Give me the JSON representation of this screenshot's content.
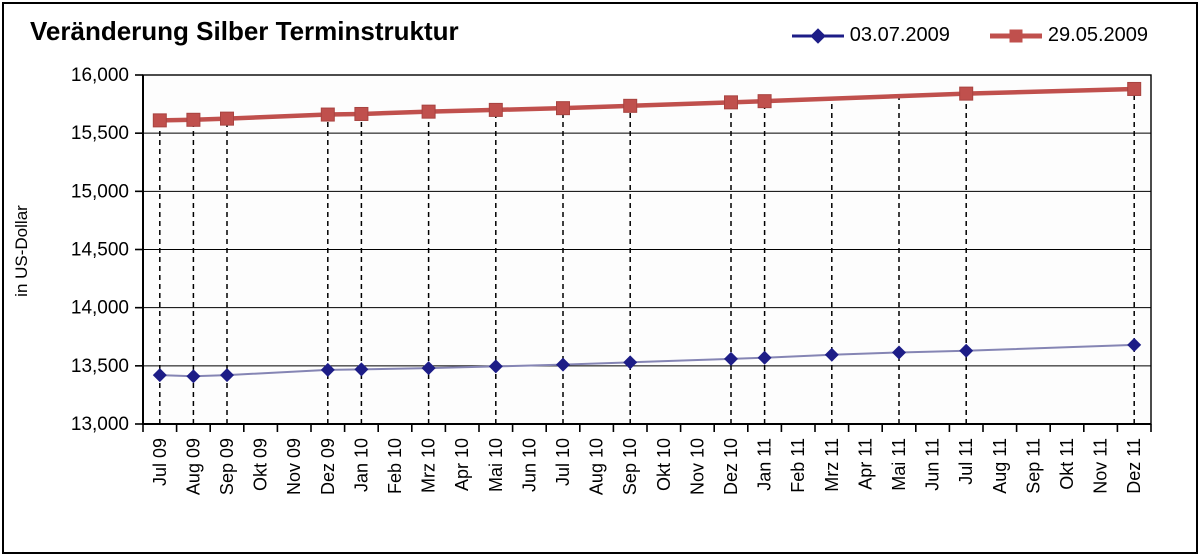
{
  "header": {
    "title": "Veränderung Silber Terminstruktur"
  },
  "legend": {
    "position": "top-right",
    "items": [
      {
        "label": "03.07.2009",
        "marker": "diamond",
        "color": "#1d1d87"
      },
      {
        "label": "29.05.2009",
        "marker": "square",
        "color": "#c0504d"
      }
    ]
  },
  "colors": {
    "series1_marker": "#1d1d87",
    "series1_line": "#8585b4",
    "series2": "#c0504d",
    "series2_edge": "#a84340",
    "grid": "#000000",
    "background": "#fdfdfd"
  },
  "chart_data": {
    "type": "line",
    "title": "Veränderung Silber Terminstruktur",
    "xlabel": "",
    "ylabel": "in US-Dollar",
    "ylim": [
      13000,
      16000
    ],
    "yticks": [
      16000,
      15500,
      15000,
      14500,
      14000,
      13500,
      13000
    ],
    "ytick_labels": [
      "16,000",
      "15,500",
      "15,000",
      "14,500",
      "14,000",
      "13,500",
      "13,000"
    ],
    "grid": {
      "horizontal": "solid",
      "vertical": "dashed drop lines at contract months only"
    },
    "legend_position": "top-right",
    "categories": [
      "Jul 09",
      "Aug 09",
      "Sep 09",
      "Okt 09",
      "Nov 09",
      "Dez 09",
      "Jan 10",
      "Feb 10",
      "Mrz 10",
      "Apr 10",
      "Mai 10",
      "Jun 10",
      "Jul 10",
      "Aug 10",
      "Sep 10",
      "Okt 10",
      "Nov 10",
      "Dez 10",
      "Jan 11",
      "Feb 11",
      "Mrz 11",
      "Apr 11",
      "Mai 11",
      "Jun 11",
      "Jul 11",
      "Aug 11",
      "Sep 11",
      "Okt 11",
      "Nov 11",
      "Dez 11"
    ],
    "series": [
      {
        "name": "03.07.2009",
        "marker": "diamond",
        "marker_color": "#1d1d87",
        "line_color": "#8585b4",
        "line_width": 2,
        "points": [
          [
            "Jul 09",
            13420
          ],
          [
            "Aug 09",
            13410
          ],
          [
            "Sep 09",
            13420
          ],
          [
            "Dez 09",
            13465
          ],
          [
            "Jan 10",
            13470
          ],
          [
            "Mrz 10",
            13480
          ],
          [
            "Mai 10",
            13495
          ],
          [
            "Jul 10",
            13510
          ],
          [
            "Sep 10",
            13530
          ],
          [
            "Dez 10",
            13560
          ],
          [
            "Jan 11",
            13570
          ],
          [
            "Mrz 11",
            13595
          ],
          [
            "Mai 11",
            13615
          ],
          [
            "Jul 11",
            13630
          ],
          [
            "Dez 11",
            13680
          ]
        ]
      },
      {
        "name": "29.05.2009",
        "marker": "square",
        "marker_color": "#c0504d",
        "line_color": "#c0504d",
        "line_width": 4.5,
        "points": [
          [
            "Jul 09",
            15610
          ],
          [
            "Aug 09",
            15615
          ],
          [
            "Sep 09",
            15625
          ],
          [
            "Dez 09",
            15660
          ],
          [
            "Jan 10",
            15665
          ],
          [
            "Mrz 10",
            15685
          ],
          [
            "Mai 10",
            15700
          ],
          [
            "Jul 10",
            15715
          ],
          [
            "Sep 10",
            15735
          ],
          [
            "Dez 10",
            15765
          ],
          [
            "Jan 11",
            15775
          ],
          [
            "Jul 11",
            15840
          ],
          [
            "Dez 11",
            15880
          ]
        ]
      }
    ],
    "dropline_months": [
      "Jul 09",
      "Aug 09",
      "Sep 09",
      "Dez 09",
      "Jan 10",
      "Mrz 10",
      "Mai 10",
      "Jul 10",
      "Sep 10",
      "Dez 10",
      "Jan 11",
      "Mrz 11",
      "Mai 11",
      "Jul 11",
      "Dez 11"
    ]
  }
}
